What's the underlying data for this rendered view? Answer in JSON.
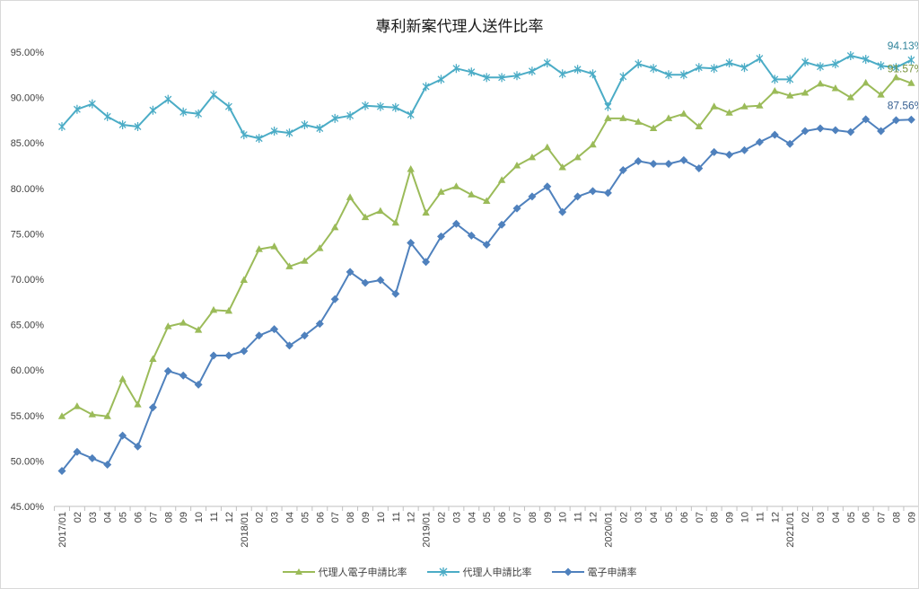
{
  "chart_data": {
    "type": "line",
    "title": "專利新案代理人送件比率",
    "xlabel": "",
    "ylabel": "",
    "ylim": [
      45,
      95
    ],
    "y_ticks": [
      "45.00%",
      "50.00%",
      "55.00%",
      "60.00%",
      "65.00%",
      "70.00%",
      "75.00%",
      "80.00%",
      "85.00%",
      "90.00%",
      "95.00%"
    ],
    "categories": [
      "2017/01",
      "02",
      "03",
      "04",
      "05",
      "06",
      "07",
      "08",
      "09",
      "10",
      "11",
      "12",
      "2018/01",
      "02",
      "03",
      "04",
      "05",
      "06",
      "07",
      "08",
      "09",
      "10",
      "11",
      "12",
      "2019/01",
      "02",
      "03",
      "04",
      "05",
      "06",
      "07",
      "08",
      "09",
      "10",
      "11",
      "12",
      "2020/01",
      "02",
      "03",
      "04",
      "05",
      "06",
      "07",
      "08",
      "09",
      "10",
      "11",
      "12",
      "2021/01",
      "02",
      "03",
      "04",
      "05",
      "06",
      "07",
      "08",
      "09"
    ],
    "grid": false,
    "legend_position": "bottom",
    "series": [
      {
        "name": "代理人電子申請比率",
        "color": "#9bbb59",
        "marker": "triangle",
        "end_label": "91.57%",
        "values": [
          54.9,
          56.0,
          55.1,
          54.9,
          59.0,
          56.2,
          61.2,
          64.8,
          65.2,
          64.4,
          66.6,
          66.5,
          69.9,
          73.3,
          73.6,
          71.4,
          72.0,
          73.4,
          75.7,
          79.0,
          76.8,
          77.5,
          76.2,
          82.1,
          77.3,
          79.6,
          80.2,
          79.3,
          78.6,
          80.9,
          82.5,
          83.4,
          84.5,
          82.3,
          83.4,
          84.8,
          87.7,
          87.7,
          87.3,
          86.6,
          87.7,
          88.2,
          86.8,
          89.0,
          88.3,
          89.0,
          89.1,
          90.7,
          90.2,
          90.5,
          91.5,
          91.0,
          90.0,
          91.6,
          90.3,
          92.2,
          91.57
        ]
      },
      {
        "name": "代理人申請比率",
        "color": "#4bacc6",
        "marker": "asterisk",
        "end_label": "94.13%",
        "values": [
          86.8,
          88.7,
          89.3,
          87.9,
          87.0,
          86.8,
          88.6,
          89.8,
          88.4,
          88.2,
          90.3,
          89.0,
          85.9,
          85.5,
          86.3,
          86.1,
          87.0,
          86.6,
          87.7,
          88.0,
          89.1,
          89.0,
          88.9,
          88.1,
          91.2,
          92.0,
          93.2,
          92.8,
          92.2,
          92.2,
          92.4,
          92.9,
          93.8,
          92.6,
          93.1,
          92.6,
          89.0,
          92.3,
          93.7,
          93.2,
          92.5,
          92.5,
          93.3,
          93.2,
          93.8,
          93.3,
          94.3,
          92.0,
          92.0,
          93.9,
          93.4,
          93.7,
          94.6,
          94.2,
          93.5,
          93.3,
          94.13
        ]
      },
      {
        "name": "電子申請率",
        "color": "#4f81bd",
        "marker": "diamond",
        "end_label": "87.56%",
        "values": [
          48.9,
          51.0,
          50.3,
          49.6,
          52.8,
          51.6,
          55.9,
          59.9,
          59.4,
          58.4,
          61.6,
          61.6,
          62.1,
          63.8,
          64.5,
          62.7,
          63.8,
          65.1,
          67.8,
          70.8,
          69.6,
          69.9,
          68.4,
          74.0,
          71.9,
          74.7,
          76.1,
          74.8,
          73.8,
          76.0,
          77.8,
          79.1,
          80.2,
          77.4,
          79.1,
          79.7,
          79.5,
          82.0,
          83.0,
          82.7,
          82.7,
          83.1,
          82.2,
          84.0,
          83.7,
          84.2,
          85.1,
          85.9,
          84.9,
          86.3,
          86.6,
          86.4,
          86.2,
          87.6,
          86.3,
          87.5,
          87.56
        ]
      }
    ]
  }
}
